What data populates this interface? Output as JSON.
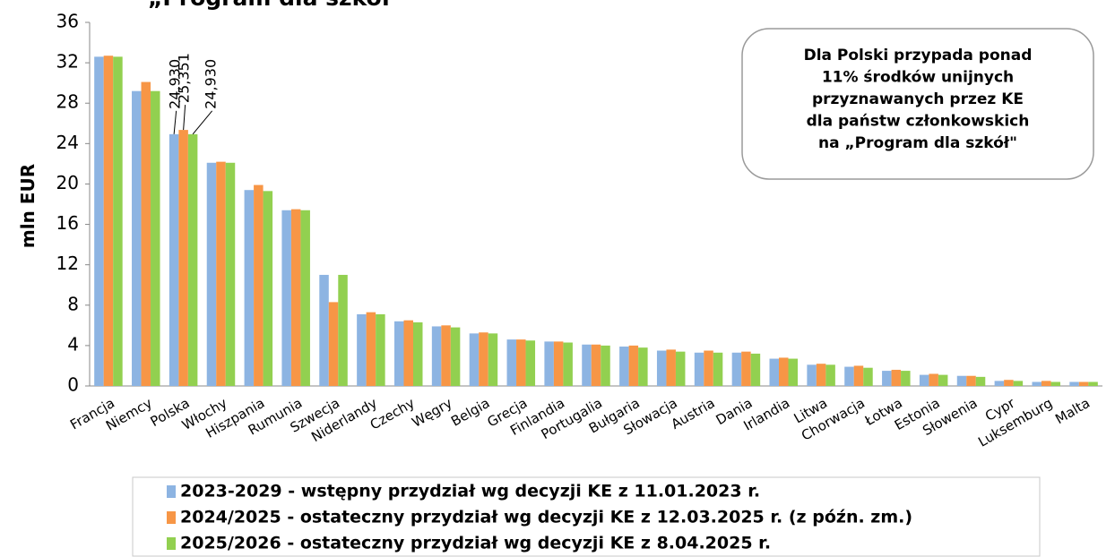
{
  "chart_data": {
    "type": "bar",
    "title": "„Program dla szkół",
    "y_label": "mln EUR",
    "annotation": [
      "Dla Polski przypada ponad",
      "11% środków unijnych",
      "przyznawanych przez KE",
      "dla państw członkowskich",
      "na „Program dla szkół\""
    ],
    "categories": [
      "Francja",
      "Niemcy",
      "Polska",
      "Włochy",
      "Hiszpania",
      "Rumunia",
      "Szwecja",
      "Niderlandy",
      "Czechy",
      "Węgry",
      "Belgia",
      "Grecja",
      "Finlandia",
      "Portugalia",
      "Bułgaria",
      "Słowacja",
      "Austria",
      "Dania",
      "Irlandia",
      "Litwa",
      "Chorwacja",
      "Łotwa",
      "Estonia",
      "Słowenia",
      "Cypr",
      "Luksemburg",
      "Malta"
    ],
    "series": [
      {
        "name": "2023-2029 - wstępny przydział wg decyzji KE z 11.01.2023 r.",
        "color": "#8db4e2",
        "values": [
          32.6,
          29.2,
          24.93,
          22.1,
          19.4,
          17.4,
          11.0,
          7.1,
          6.4,
          5.9,
          5.2,
          4.6,
          4.4,
          4.1,
          3.9,
          3.5,
          3.3,
          3.3,
          2.7,
          2.1,
          1.9,
          1.5,
          1.1,
          1.0,
          0.5,
          0.4,
          0.4
        ],
        "value_labels": [
          null,
          null,
          "24,930",
          null,
          null,
          null,
          null,
          null,
          null,
          null,
          null,
          null,
          null,
          null,
          null,
          null,
          null,
          null,
          null,
          null,
          null,
          null,
          null,
          null,
          null,
          null,
          null
        ]
      },
      {
        "name": "2024/2025 - ostateczny przydział wg decyzji KE z 12.03.2025 r. (z późn. zm.)",
        "color": "#f79646",
        "values": [
          32.7,
          30.1,
          25.351,
          22.2,
          19.9,
          17.5,
          8.3,
          7.3,
          6.5,
          6.0,
          5.3,
          4.6,
          4.4,
          4.1,
          4.0,
          3.6,
          3.5,
          3.4,
          2.8,
          2.2,
          2.0,
          1.6,
          1.2,
          1.0,
          0.6,
          0.5,
          0.4
        ],
        "value_labels": [
          null,
          null,
          "25,351",
          null,
          null,
          null,
          null,
          null,
          null,
          null,
          null,
          null,
          null,
          null,
          null,
          null,
          null,
          null,
          null,
          null,
          null,
          null,
          null,
          null,
          null,
          null,
          null
        ]
      },
      {
        "name": "2025/2026 - ostateczny przydział wg decyzji KE z 8.04.2025 r.",
        "color": "#92d050",
        "values": [
          32.6,
          29.2,
          24.93,
          22.1,
          19.3,
          17.4,
          11.0,
          7.1,
          6.3,
          5.8,
          5.2,
          4.5,
          4.3,
          4.0,
          3.8,
          3.4,
          3.3,
          3.2,
          2.7,
          2.1,
          1.8,
          1.5,
          1.1,
          0.9,
          0.5,
          0.4,
          0.4
        ],
        "value_labels": [
          null,
          null,
          "24,930",
          null,
          null,
          null,
          null,
          null,
          null,
          null,
          null,
          null,
          null,
          null,
          null,
          null,
          null,
          null,
          null,
          null,
          null,
          null,
          null,
          null,
          null,
          null,
          null
        ]
      }
    ],
    "ylim": [
      0,
      36
    ],
    "yticks": [
      0,
      4,
      8,
      12,
      16,
      20,
      24,
      28,
      32,
      36
    ],
    "grid": false,
    "legend": "bottom"
  }
}
